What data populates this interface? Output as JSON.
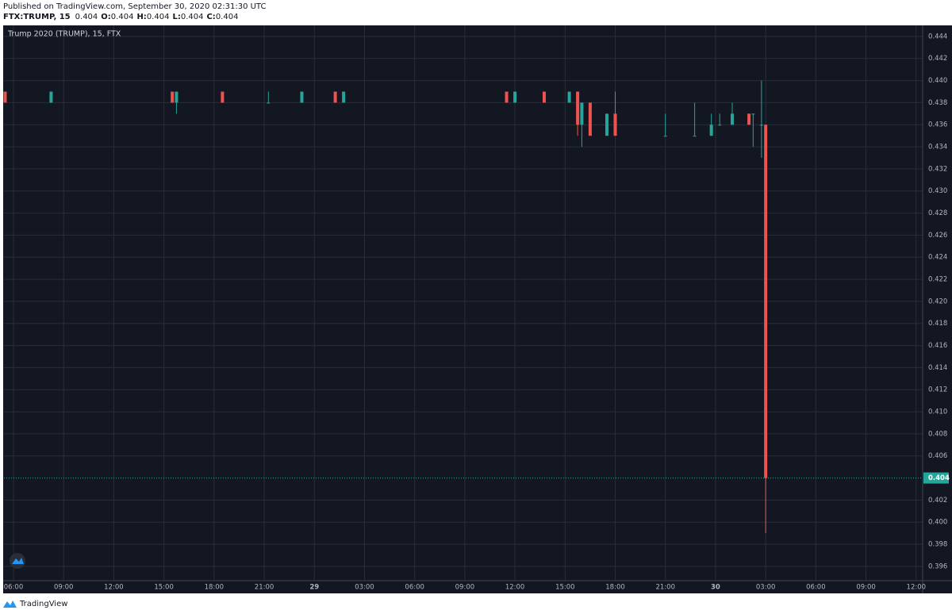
{
  "chart_data": {
    "type": "candlestick",
    "published": "Published on TradingView.com, September 30, 2020 02:31:30 UTC",
    "symbol": "FTX:TRUMP, 15",
    "last": 0.404,
    "ohlc": [
      {
        "label": "O:",
        "value": 0.404
      },
      {
        "label": "H:",
        "value": 0.404
      },
      {
        "label": "L:",
        "value": 0.404
      },
      {
        "label": "C:",
        "value": 0.404
      }
    ],
    "title": "Trump 2020 (TRUMP), 15, FTX",
    "footer": "TradingView",
    "x": [
      -0.5,
      2.25,
      9.5,
      9.75,
      12.5,
      15.25,
      17.25,
      19.25,
      19.75,
      29.5,
      30.0,
      31.75,
      33.25,
      33.75,
      34.0,
      34.5,
      35.5,
      36.0,
      39.0,
      40.75,
      41.75,
      42.25,
      43.0,
      44.0,
      44.25,
      44.75,
      45.0
    ],
    "open": [
      0.439,
      0.438,
      0.439,
      0.438,
      0.439,
      0.438,
      0.438,
      0.439,
      0.438,
      0.439,
      0.438,
      0.439,
      0.438,
      0.439,
      0.436,
      0.438,
      0.435,
      0.437,
      0.435,
      0.435,
      0.435,
      0.436,
      0.436,
      0.437,
      0.437,
      0.436,
      0.436
    ],
    "high": [
      0.439,
      0.439,
      0.439,
      0.439,
      0.439,
      0.439,
      0.439,
      0.439,
      0.439,
      0.439,
      0.439,
      0.439,
      0.439,
      0.439,
      0.438,
      0.438,
      0.437,
      0.439,
      0.437,
      0.438,
      0.437,
      0.437,
      0.438,
      0.437,
      0.437,
      0.44,
      0.436
    ],
    "low": [
      0.438,
      0.438,
      0.438,
      0.437,
      0.438,
      0.438,
      0.438,
      0.438,
      0.438,
      0.438,
      0.438,
      0.438,
      0.438,
      0.435,
      0.434,
      0.435,
      0.435,
      0.435,
      0.435,
      0.435,
      0.435,
      0.436,
      0.436,
      0.436,
      0.434,
      0.433,
      0.399
    ],
    "close": [
      0.438,
      0.439,
      0.438,
      0.439,
      0.438,
      0.438,
      0.439,
      0.438,
      0.439,
      0.438,
      0.439,
      0.438,
      0.439,
      0.436,
      0.438,
      0.435,
      0.437,
      0.435,
      0.435,
      0.435,
      0.436,
      0.436,
      0.437,
      0.436,
      0.437,
      0.436,
      0.404
    ],
    "up_color": "#26a69a",
    "down_color": "#ef5350",
    "xlim": [
      -0.57,
      54.39
    ],
    "xticks": [
      {
        "value": 0,
        "label": "06:00"
      },
      {
        "value": 3,
        "label": "09:00"
      },
      {
        "value": 6,
        "label": "12:00"
      },
      {
        "value": 9,
        "label": "15:00"
      },
      {
        "value": 12,
        "label": "18:00"
      },
      {
        "value": 15,
        "label": "21:00"
      },
      {
        "value": 18,
        "label": "29"
      },
      {
        "value": 21,
        "label": "03:00"
      },
      {
        "value": 24,
        "label": "06:00"
      },
      {
        "value": 27,
        "label": "09:00"
      },
      {
        "value": 30,
        "label": "12:00"
      },
      {
        "value": 33,
        "label": "15:00"
      },
      {
        "value": 36,
        "label": "18:00"
      },
      {
        "value": 39,
        "label": "21:00"
      },
      {
        "value": 42,
        "label": "30"
      },
      {
        "value": 45,
        "label": "03:00"
      },
      {
        "value": 48,
        "label": "06:00"
      },
      {
        "value": 51,
        "label": "09:00"
      },
      {
        "value": 54,
        "label": "12:00"
      }
    ],
    "ylim": [
      0.3947,
      0.445
    ],
    "yticks": [
      0.396,
      0.398,
      {
        "value": 0.4,
        "label": "0.400"
      },
      0.402,
      0.406,
      0.408,
      {
        "value": 0.41,
        "label": "0.410"
      },
      0.412,
      0.414,
      0.416,
      0.418,
      {
        "value": 0.42,
        "label": "0.420"
      },
      0.422,
      0.424,
      0.426,
      0.428,
      {
        "value": 0.43,
        "label": "0.430"
      },
      0.432,
      0.434,
      0.436,
      0.438,
      {
        "value": 0.44,
        "label": "0.440"
      },
      0.442,
      0.444
    ],
    "grid": true
  }
}
